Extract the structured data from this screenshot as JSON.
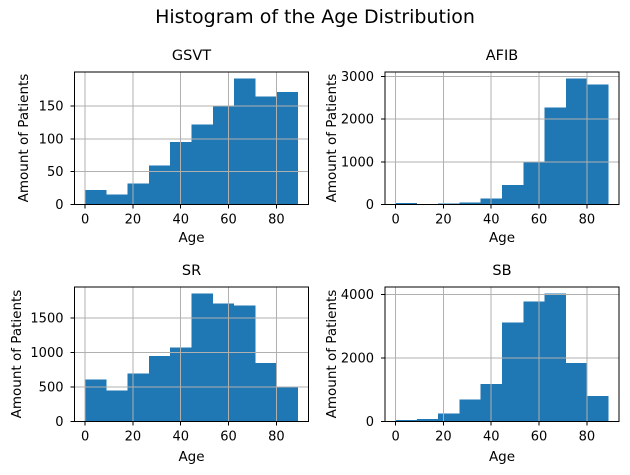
{
  "figure": {
    "suptitle": "Histogram of the Age Distribution",
    "colors": {
      "bar": "#1f77b4",
      "grid": "#b0b0b0",
      "spine": "#000000",
      "text": "#000000",
      "background": "#ffffff"
    }
  },
  "chart_data": [
    {
      "type": "bar",
      "title": "GSVT",
      "xlabel": "Age",
      "ylabel": "Amount of Patients",
      "bin_edges": [
        0,
        8.9,
        17.8,
        26.7,
        35.6,
        44.5,
        53.4,
        62.3,
        71.2,
        80.1,
        89
      ],
      "values": [
        22,
        15,
        32,
        59,
        95,
        122,
        150,
        192,
        164,
        171
      ],
      "xticks": [
        0,
        20,
        40,
        60,
        80
      ],
      "yticks": [
        0,
        50,
        100,
        150
      ],
      "xlim": [
        -4.45,
        93.45
      ],
      "ylim": [
        0,
        201.6
      ],
      "grid": true,
      "grid_over_bars": true,
      "legend": "none"
    },
    {
      "type": "bar",
      "title": "AFIB",
      "xlabel": "Age",
      "ylabel": "Amount of Patients",
      "bin_edges": [
        0,
        8.9,
        17.8,
        26.7,
        35.6,
        44.5,
        53.4,
        62.3,
        71.2,
        80.1,
        89
      ],
      "values": [
        40,
        10,
        25,
        50,
        140,
        455,
        1000,
        2280,
        2960,
        2820
      ],
      "xticks": [
        0,
        20,
        40,
        60,
        80
      ],
      "yticks": [
        0,
        1000,
        2000,
        3000
      ],
      "xlim": [
        -4.45,
        93.45
      ],
      "ylim": [
        0,
        3108
      ],
      "grid": true,
      "grid_over_bars": true,
      "legend": "none"
    },
    {
      "type": "bar",
      "title": "SR",
      "xlabel": "Age",
      "ylabel": "Amount of Patients",
      "bin_edges": [
        0,
        8.9,
        17.8,
        26.7,
        35.6,
        44.5,
        53.4,
        62.3,
        71.2,
        80.1,
        89
      ],
      "values": [
        610,
        450,
        695,
        950,
        1070,
        1855,
        1710,
        1680,
        850,
        495
      ],
      "xticks": [
        0,
        20,
        40,
        60,
        80
      ],
      "yticks": [
        0,
        500,
        1000,
        1500
      ],
      "xlim": [
        -4.45,
        93.45
      ],
      "ylim": [
        0,
        1948
      ],
      "grid": true,
      "grid_over_bars": true,
      "legend": "none"
    },
    {
      "type": "bar",
      "title": "SB",
      "xlabel": "Age",
      "ylabel": "Amount of Patients",
      "bin_edges": [
        0,
        8.9,
        17.8,
        26.7,
        35.6,
        44.5,
        53.4,
        62.3,
        71.2,
        80.1,
        89
      ],
      "values": [
        40,
        85,
        250,
        690,
        1180,
        3120,
        3790,
        4040,
        1845,
        800
      ],
      "xticks": [
        0,
        20,
        40,
        60,
        80
      ],
      "yticks": [
        0,
        2000,
        4000
      ],
      "xlim": [
        -4.45,
        93.45
      ],
      "ylim": [
        0,
        4242
      ],
      "grid": true,
      "grid_over_bars": true,
      "legend": "none"
    }
  ]
}
